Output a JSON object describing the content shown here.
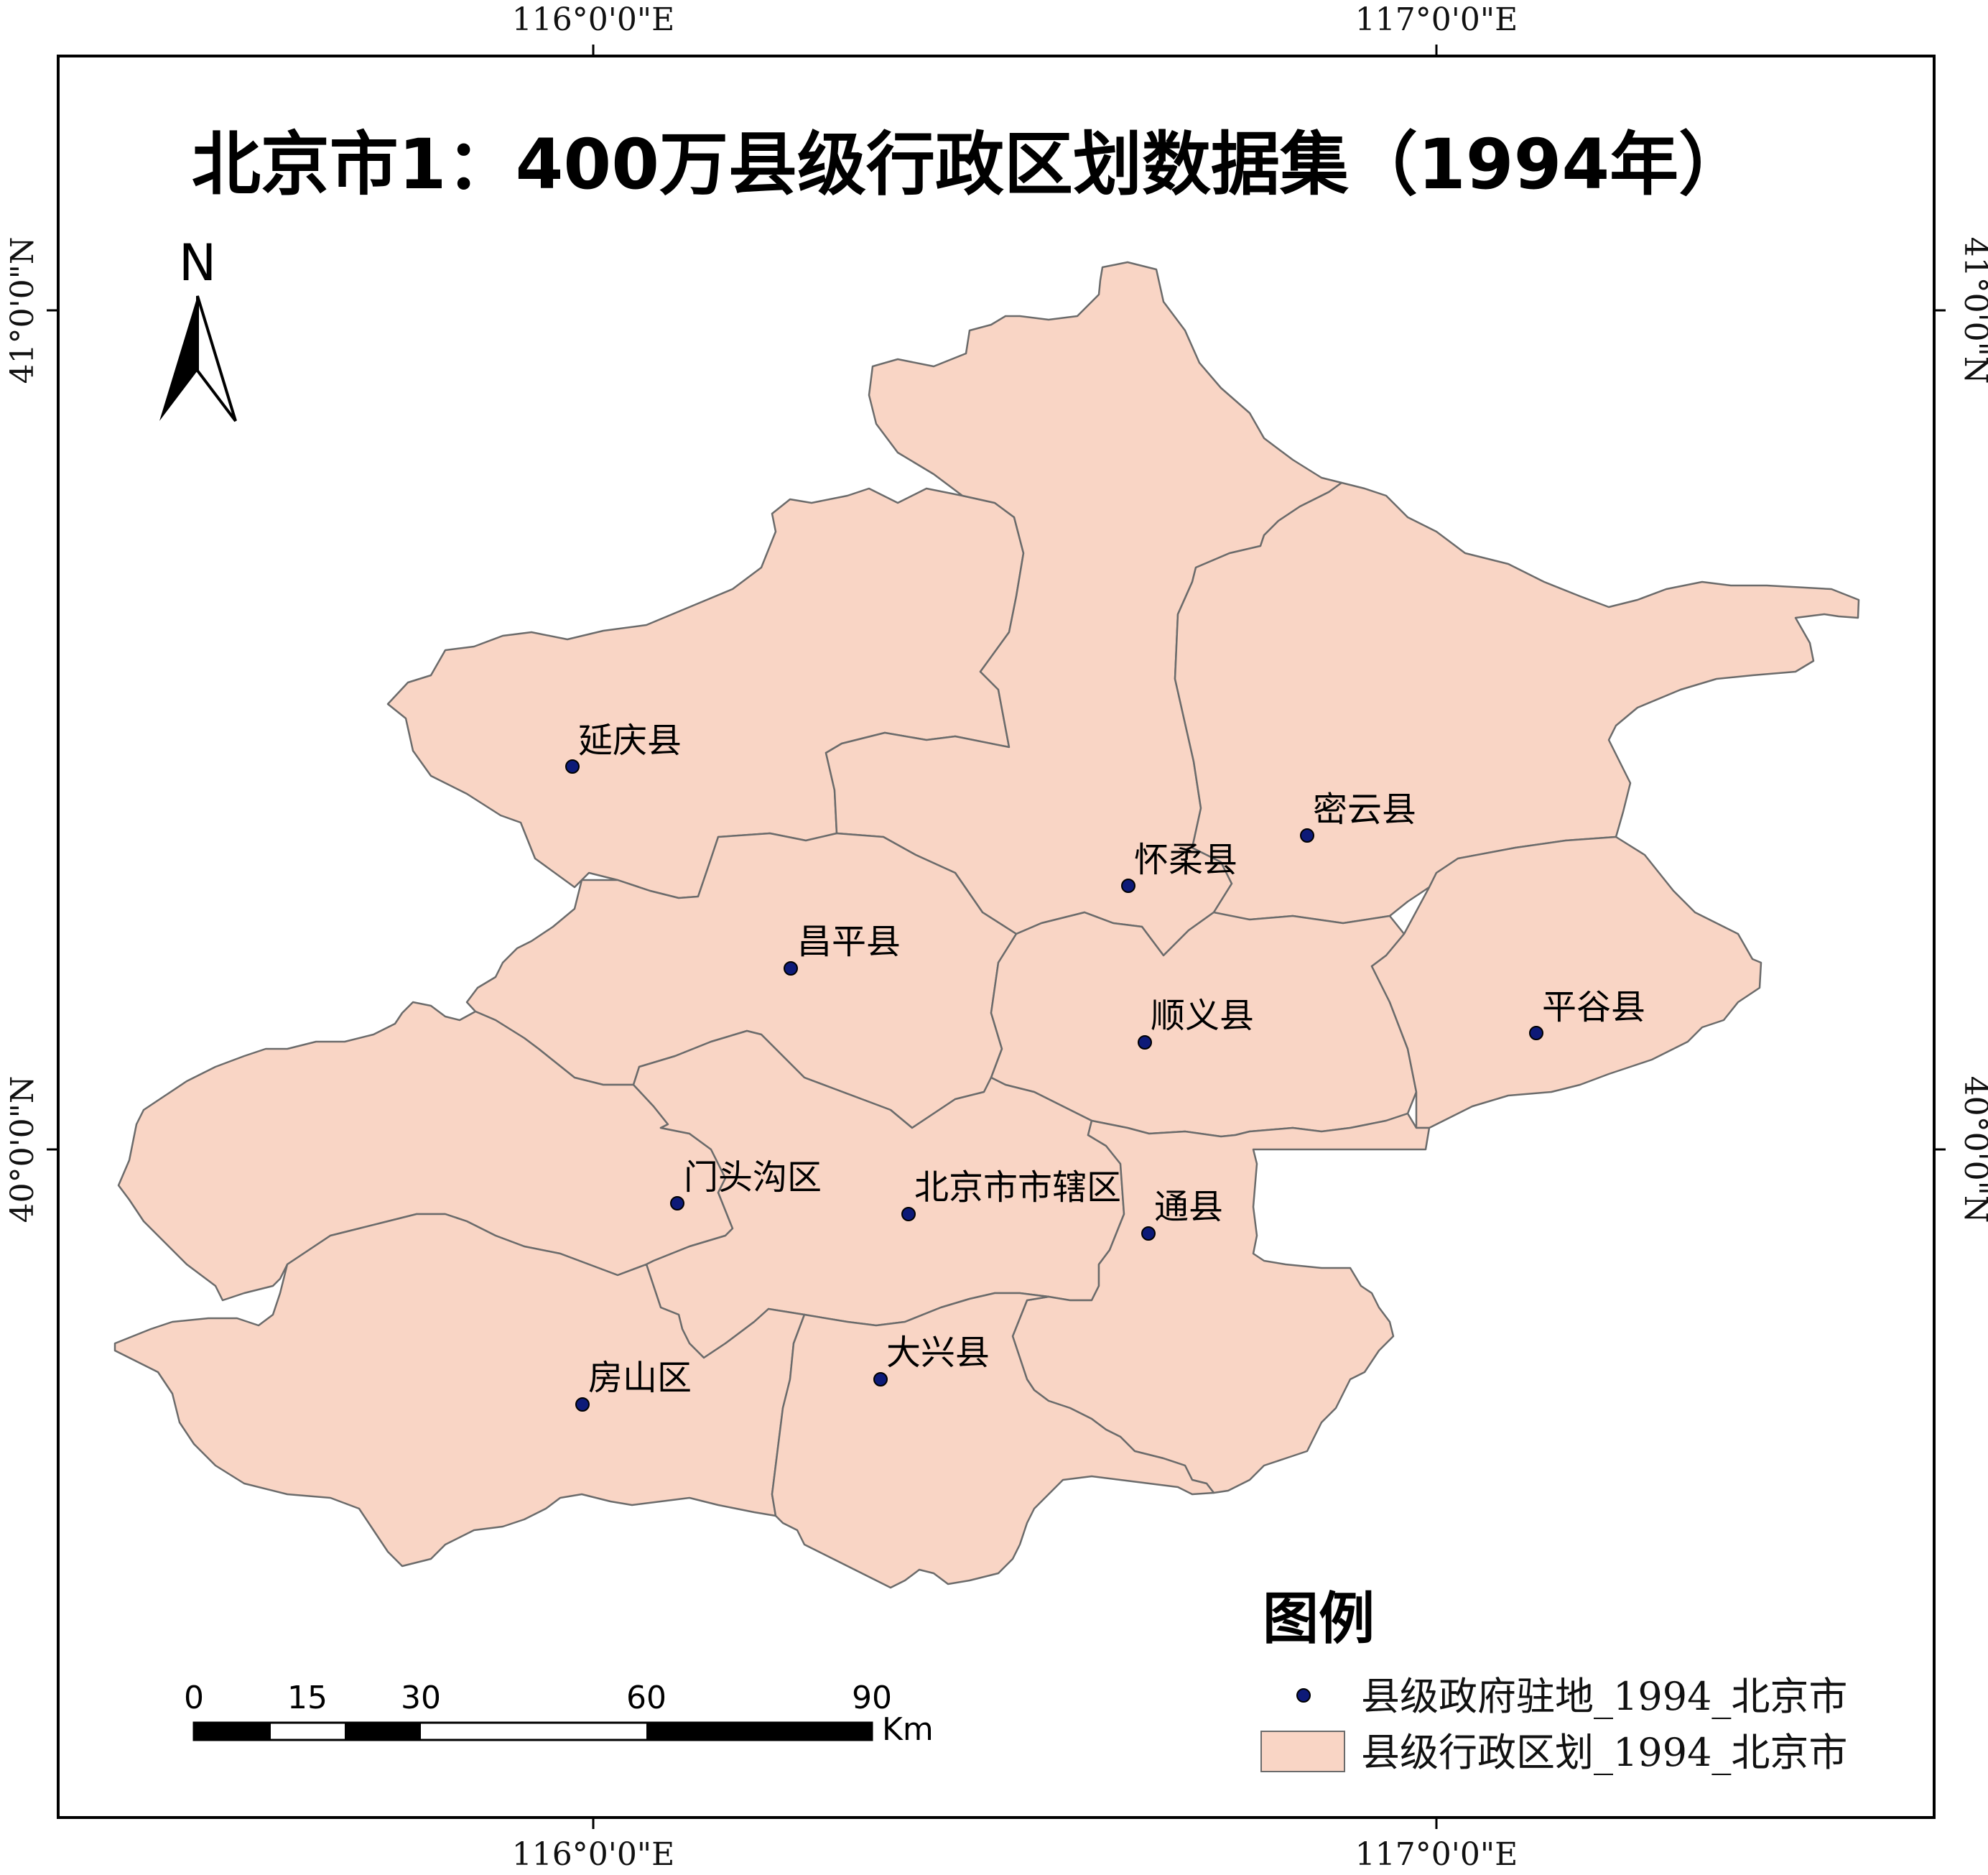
{
  "map": {
    "title": "北京市1：400万县级行政区划数据集（1994年）",
    "north_label": "N",
    "lon_labels_top": [
      "116°0'0\"E",
      "117°0'0\"E"
    ],
    "lon_labels_bottom": [
      "116°0'0\"E",
      "117°0'0\"E"
    ],
    "lat_labels_left": [
      "41°0'0\"N",
      "40°0'0\"N"
    ],
    "lat_labels_right": [
      "41°0'0\"N",
      "40°0'0\"N"
    ],
    "region_fill": "#f9d5c5",
    "border_color": "#6b6b6b",
    "seat_color": "#0d1a78",
    "places": [
      "延庆县",
      "怀柔县",
      "密云县",
      "昌平县",
      "顺义县",
      "平谷县",
      "门头沟区",
      "北京市市辖区",
      "通县",
      "房山区",
      "大兴县"
    ]
  },
  "scale_bar": {
    "ticks": [
      "0",
      "15",
      "30",
      "60",
      "90"
    ],
    "unit": "Km"
  },
  "legend": {
    "title": "图例",
    "items": [
      {
        "label": "县级政府驻地_1994_北京市",
        "symbol": "point"
      },
      {
        "label": "县级行政区划_1994_北京市",
        "symbol": "polygon"
      }
    ]
  }
}
